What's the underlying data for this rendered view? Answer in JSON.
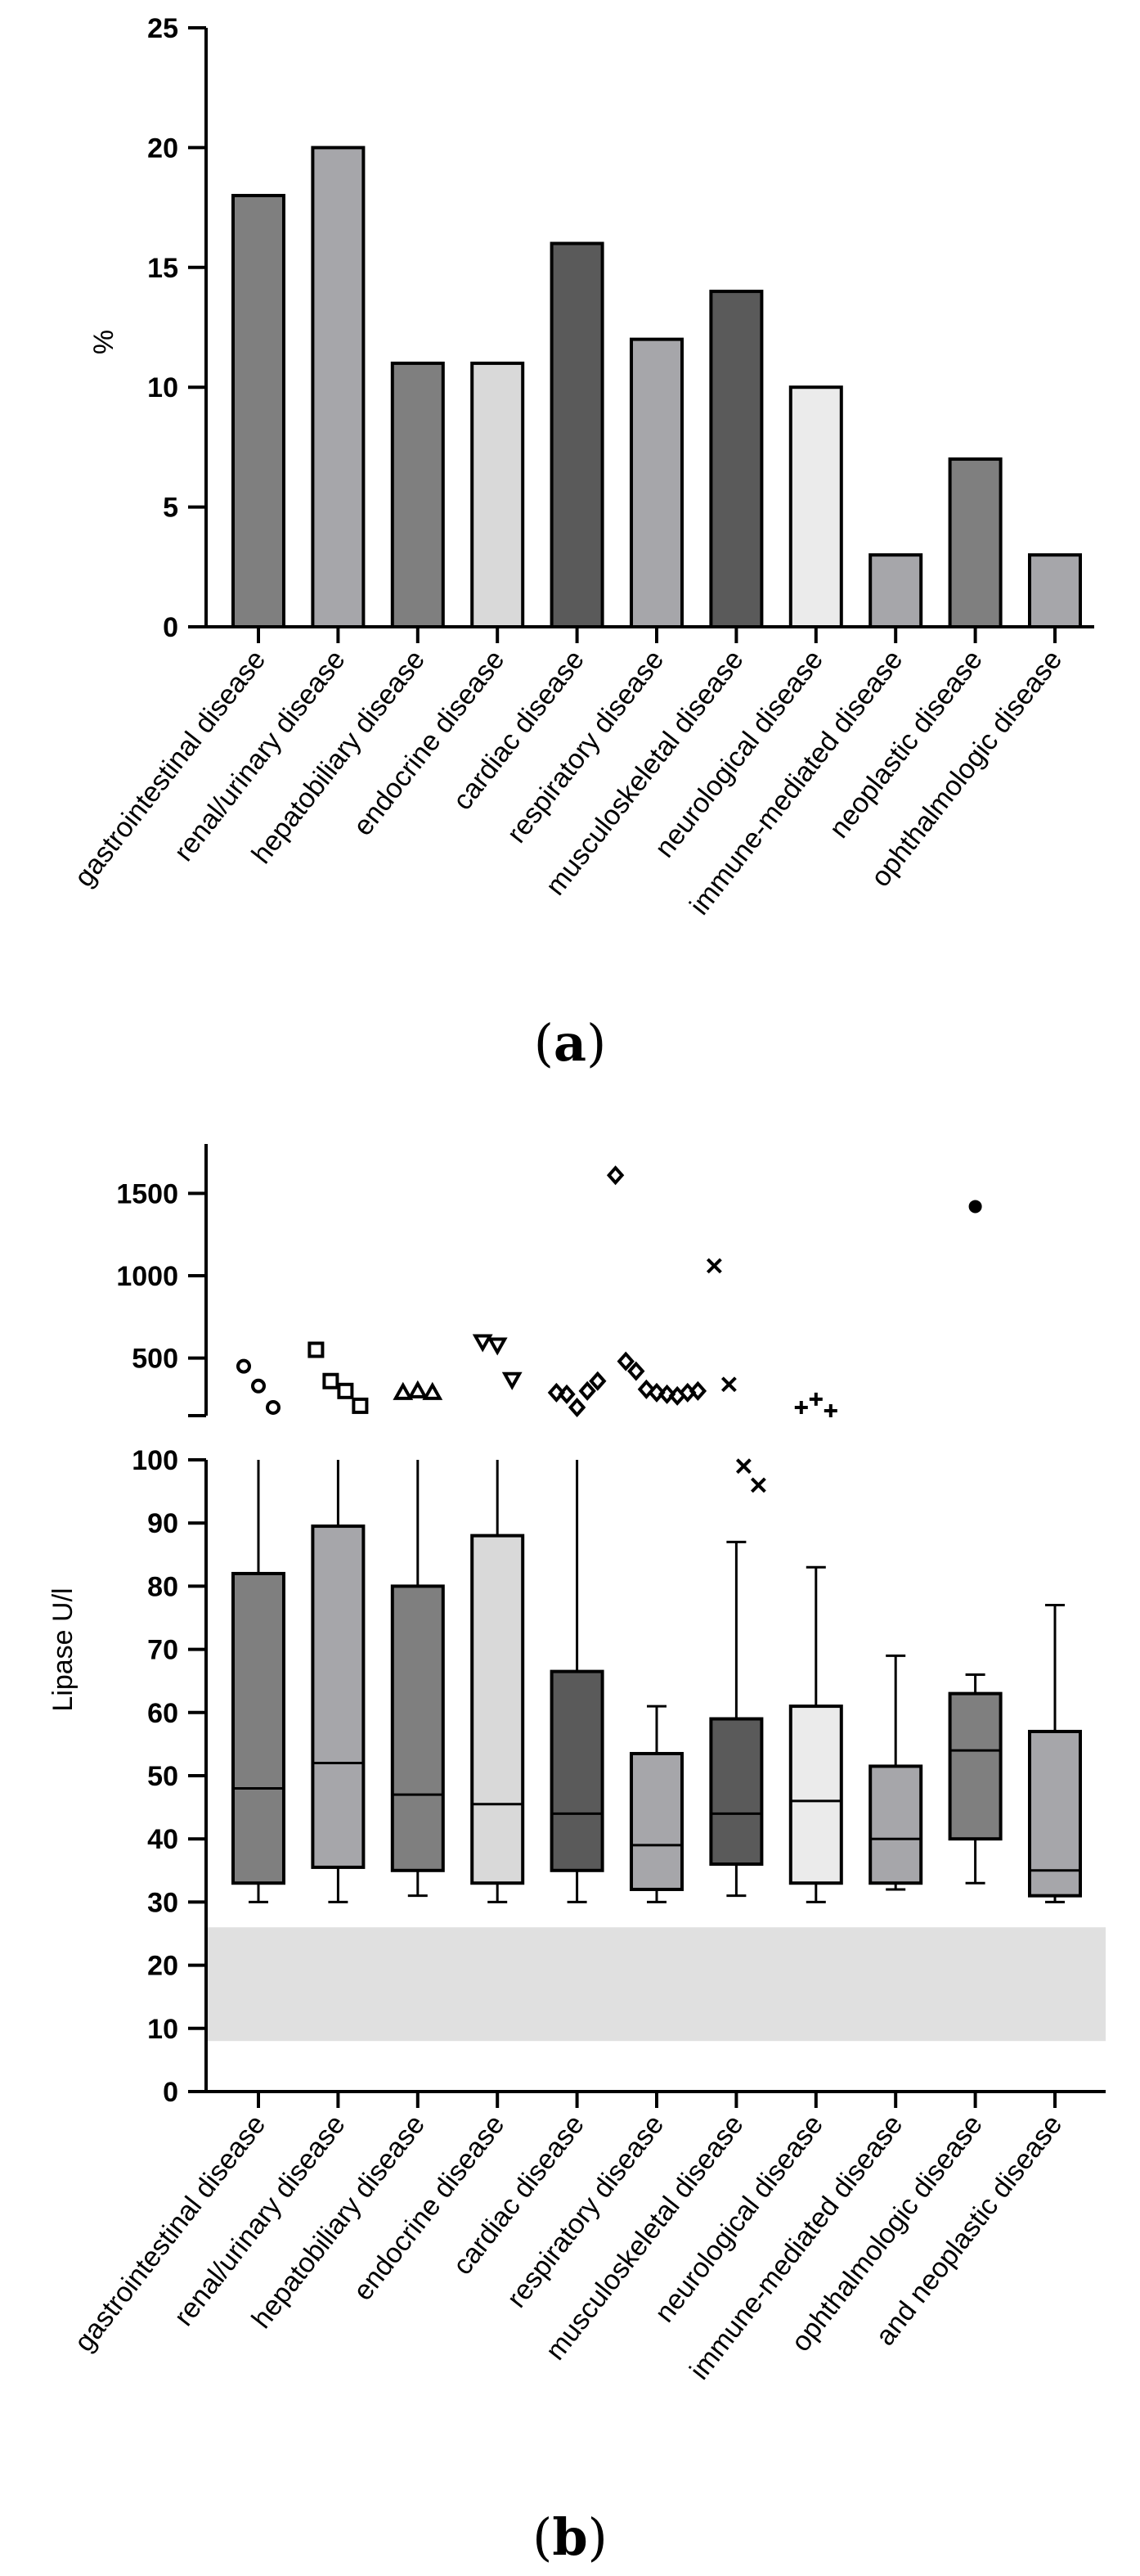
{
  "chart_data": [
    {
      "panel": "a",
      "type": "bar",
      "title": "",
      "ylabel": "%",
      "xlabel": "",
      "ylim": [
        0,
        25
      ],
      "yticks": [
        0,
        5,
        10,
        15,
        20,
        25
      ],
      "categories": [
        "gastrointestinal disease",
        "renal/urinary disease",
        "hepatobiliary disease",
        "endocrine disease",
        "cardiac disease",
        "respiratory disease",
        "musculoskeletal disease",
        "neurological disease",
        "immune-mediated disease",
        "neoplastic disease",
        "ophthalmologic disease"
      ],
      "values": [
        18,
        20,
        11,
        11,
        16,
        12,
        14,
        10,
        3,
        7,
        3
      ],
      "colors": [
        "#7f7f7f",
        "#a6a6aa",
        "#7f7f7f",
        "#d9d9d9",
        "#5a5a5a",
        "#a6a6aa",
        "#5a5a5a",
        "#ebebeb",
        "#a6a6aa",
        "#7f7f7f",
        "#a6a6aa"
      ]
    },
    {
      "panel": "b",
      "type": "box",
      "title": "",
      "ylabel": "Lipase U/l",
      "xlabel": "",
      "lower_ylim": [
        0,
        100
      ],
      "lower_yticks": [
        0,
        10,
        20,
        30,
        40,
        50,
        60,
        70,
        80,
        90,
        100
      ],
      "upper_ylim": [
        150,
        1800
      ],
      "upper_yticks": [
        500,
        1000,
        1500
      ],
      "reference_range": [
        8,
        26
      ],
      "categories": [
        "gastrointestinal disease",
        "renal/urinary disease",
        "hepatobiliary disease",
        "endocrine disease",
        "cardiac disease",
        "respiratory disease",
        "musculoskeletal disease",
        "neurological disease",
        "immune-mediated disease",
        "ophthalmologic disease",
        "and neoplastic disease"
      ],
      "boxes": [
        {
          "min": 30,
          "q1": 33,
          "median": 48,
          "q3": 82,
          "max": 100,
          "color": "#7f7f7f"
        },
        {
          "min": 30,
          "q1": 35.5,
          "median": 52,
          "q3": 89.5,
          "max": 100,
          "color": "#a6a6aa"
        },
        {
          "min": 31,
          "q1": 35,
          "median": 47,
          "q3": 80,
          "max": 100,
          "color": "#7f7f7f"
        },
        {
          "min": 30,
          "q1": 33,
          "median": 45.5,
          "q3": 88,
          "max": 100,
          "color": "#d9d9d9"
        },
        {
          "min": 30,
          "q1": 35,
          "median": 44,
          "q3": 66.5,
          "max": 100,
          "color": "#5a5a5a"
        },
        {
          "min": 30,
          "q1": 32,
          "median": 39,
          "q3": 53.5,
          "max": 61,
          "color": "#a6a6aa"
        },
        {
          "min": 31,
          "q1": 36,
          "median": 44,
          "q3": 59,
          "max": 87,
          "color": "#5a5a5a"
        },
        {
          "min": 30,
          "q1": 33,
          "median": 46,
          "q3": 61,
          "max": 83,
          "color": "#ebebeb"
        },
        {
          "min": 32,
          "q1": 33,
          "median": 40,
          "q3": 51.5,
          "max": 69,
          "color": "#a6a6aa"
        },
        {
          "min": 33,
          "q1": 40,
          "median": 54,
          "q3": 63,
          "max": 66,
          "color": "#7f7f7f"
        },
        {
          "min": 30,
          "q1": 31,
          "median": 35,
          "q3": 57,
          "max": 77,
          "color": "#a6a6aa"
        }
      ],
      "outliers": [
        {
          "marker": "circle",
          "values": [
            450,
            330,
            200
          ]
        },
        {
          "marker": "square",
          "values": [
            550,
            360,
            300,
            210
          ]
        },
        {
          "marker": "triangle-up",
          "values": [
            290,
            300,
            290
          ]
        },
        {
          "marker": "triangle-down",
          "values": [
            600,
            580,
            370
          ]
        },
        {
          "marker": "diamond",
          "values": [
            290,
            280,
            200,
            300,
            360
          ]
        },
        {
          "marker": "diamond",
          "values": [
            1610,
            480,
            420,
            310,
            290,
            280,
            270,
            290,
            300
          ]
        },
        {
          "marker": "x",
          "values": [
            1060,
            340,
            99,
            96
          ]
        },
        {
          "marker": "plus",
          "values": [
            200,
            250,
            180
          ]
        },
        {
          "marker": "none",
          "values": []
        },
        {
          "marker": "dot",
          "values": [
            1420
          ]
        },
        {
          "marker": "none",
          "values": []
        }
      ]
    }
  ],
  "panel_labels": {
    "a": "a",
    "b": "b"
  }
}
